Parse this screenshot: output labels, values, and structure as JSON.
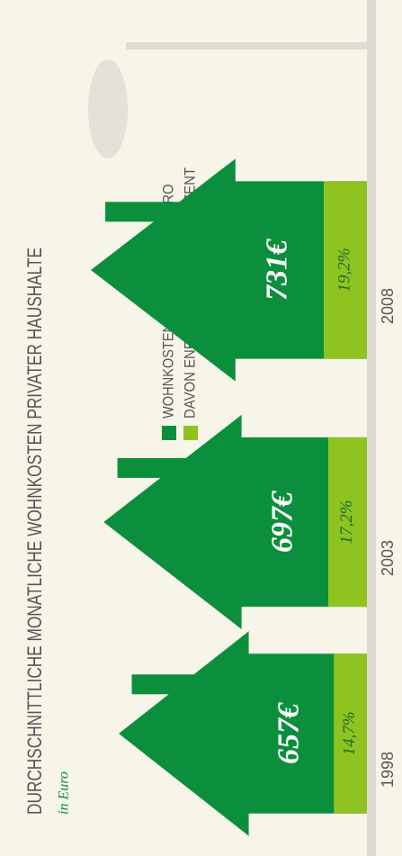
{
  "chart_data": {
    "type": "bar",
    "title": "DURCHSCHNITTLICHE MONATLICHE WOHNKOSTEN PRIVATER HAUSHALTE",
    "subtitle": "in Euro",
    "categories": [
      "1998",
      "2003",
      "2008"
    ],
    "series": [
      {
        "name": "WOHNKOSTEN INSGESAMT IN EURO",
        "color": "#0b8f3d",
        "values": [
          657,
          697,
          731
        ],
        "value_labels": [
          "657€",
          "697€",
          "731€"
        ]
      },
      {
        "name": "DAVON ENERGIEKOSTEN IN PROZENT",
        "color": "#8fc31f",
        "values": [
          14.7,
          17.2,
          19.2
        ],
        "value_labels": [
          "14,7%",
          "17,2%",
          "19,2%"
        ]
      }
    ]
  }
}
